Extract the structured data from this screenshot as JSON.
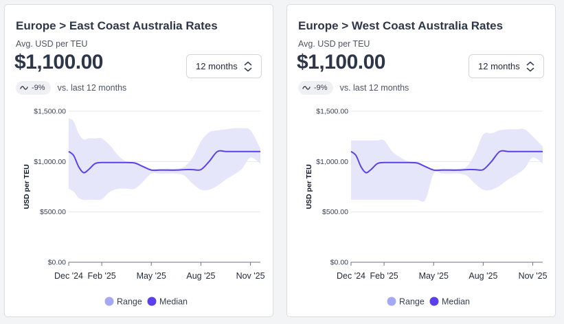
{
  "cards": [
    {
      "title": "Europe > East Coast Australia Rates",
      "metric_label": "Avg. USD per TEU",
      "metric_value": "$1,100.00",
      "period": "12 months",
      "change_pct": "-9%",
      "change_text": "vs. last 12 months",
      "trend_icon": "wave-icon",
      "chart_data": {
        "type": "area",
        "ylabel": "USD per TEU",
        "ylim": [
          0,
          1500
        ],
        "y_ticks": [
          "$0.00",
          "$500.00",
          "$1,000.00",
          "$1,500.00"
        ],
        "y_tick_values": [
          0,
          500,
          1000,
          1500
        ],
        "x_ticks": [
          "Dec '24",
          "Feb '25",
          "May '25",
          "Aug '25",
          "Nov '25"
        ],
        "x_tick_values": [
          0,
          2,
          5,
          8,
          11
        ],
        "x_range": [
          0,
          11.6
        ],
        "grid": true,
        "legend_position": "bottom",
        "legend": [
          "Range",
          "Median"
        ],
        "colors": {
          "range": "#e6e6fb",
          "range_legend": "#a5a8f2",
          "median": "#5b3fea"
        },
        "x": [
          0,
          0.3,
          0.6,
          0.9,
          1.2,
          1.6,
          2.0,
          2.5,
          3.0,
          3.5,
          4.0,
          4.5,
          5.0,
          5.5,
          6.0,
          6.5,
          7.0,
          7.5,
          8.0,
          8.5,
          9.0,
          9.5,
          10.0,
          10.5,
          11.0,
          11.6
        ],
        "median": [
          1100,
          1060,
          950,
          890,
          920,
          980,
          990,
          990,
          990,
          990,
          985,
          950,
          915,
          915,
          915,
          915,
          920,
          920,
          920,
          1000,
          1100,
          1100,
          1100,
          1100,
          1100,
          1100
        ],
        "range_low": [
          730,
          700,
          640,
          620,
          620,
          620,
          625,
          700,
          730,
          730,
          730,
          800,
          880,
          880,
          880,
          880,
          860,
          780,
          720,
          720,
          760,
          820,
          870,
          930,
          1040,
          980
        ],
        "range_high": [
          1430,
          1400,
          1280,
          1220,
          1230,
          1230,
          1230,
          1160,
          1060,
          1000,
          1000,
          960,
          930,
          930,
          930,
          930,
          950,
          1040,
          1200,
          1290,
          1310,
          1320,
          1330,
          1330,
          1310,
          1130
        ]
      }
    },
    {
      "title": "Europe > West Coast Australia Rates",
      "metric_label": "Avg. USD per TEU",
      "metric_value": "$1,100.00",
      "period": "12 months",
      "change_pct": "-9%",
      "change_text": "vs. last 12 months",
      "trend_icon": "wave-icon",
      "chart_data": {
        "type": "area",
        "ylabel": "USD per TEU",
        "ylim": [
          0,
          1500
        ],
        "y_ticks": [
          "$0.00",
          "$500.00",
          "$1,000.00",
          "$1,500.00"
        ],
        "y_tick_values": [
          0,
          500,
          1000,
          1500
        ],
        "x_ticks": [
          "Dec '24",
          "Feb '25",
          "May '25",
          "Aug '25",
          "Nov '25"
        ],
        "x_tick_values": [
          0,
          2,
          5,
          8,
          11
        ],
        "x_range": [
          0,
          11.6
        ],
        "grid": true,
        "legend_position": "bottom",
        "legend": [
          "Range",
          "Median"
        ],
        "colors": {
          "range": "#e6e6fb",
          "range_legend": "#a5a8f2",
          "median": "#5b3fea"
        },
        "x": [
          0,
          0.3,
          0.6,
          0.9,
          1.2,
          1.6,
          2.0,
          2.5,
          3.0,
          3.5,
          4.0,
          4.5,
          5.0,
          5.5,
          6.0,
          6.5,
          7.0,
          7.5,
          8.0,
          8.5,
          9.0,
          9.5,
          10.0,
          10.5,
          11.0,
          11.6
        ],
        "median": [
          1100,
          1060,
          950,
          890,
          920,
          980,
          990,
          990,
          990,
          990,
          985,
          950,
          915,
          915,
          915,
          915,
          920,
          920,
          920,
          1000,
          1100,
          1100,
          1100,
          1100,
          1100,
          1100
        ],
        "range_low": [
          620,
          620,
          620,
          620,
          620,
          620,
          620,
          620,
          620,
          620,
          620,
          620,
          880,
          880,
          880,
          880,
          860,
          780,
          720,
          720,
          760,
          820,
          870,
          930,
          1040,
          980
        ],
        "range_high": [
          1210,
          1210,
          1210,
          1210,
          1210,
          1210,
          1210,
          1100,
          1040,
          1000,
          1000,
          960,
          930,
          930,
          930,
          930,
          950,
          1080,
          1270,
          1280,
          1310,
          1320,
          1320,
          1320,
          1250,
          1150
        ]
      }
    }
  ]
}
